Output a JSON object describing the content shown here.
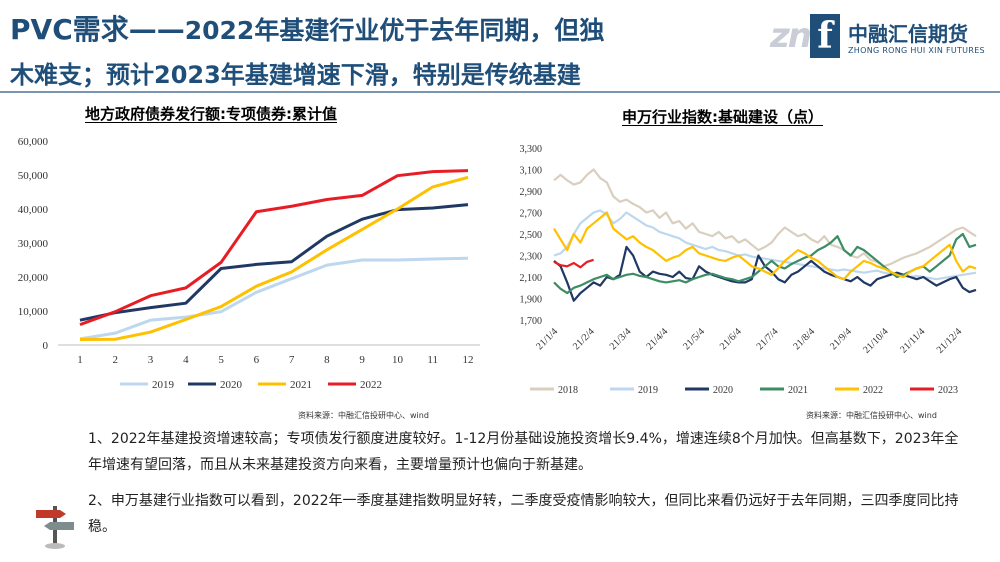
{
  "header": {
    "title_line1_a": "PVC需求——",
    "title_line1_b": "2022年基建行业优于去年同期，但独",
    "title_line2": "木难支；预计2023年基建增速下滑，特别是传统基建",
    "logo_text_cn": "中融汇信期货",
    "logo_text_en": "ZHONG RONG HUI XIN FUTURES",
    "accent_color": "#1f4e79"
  },
  "left_chart": {
    "title": "地方政府债券发行额:专项债券:累计值",
    "source": "资料来源：中融汇信投研中心、wind"
  },
  "right_chart": {
    "title": "申万行业指数:基础建设（点）",
    "source": "资料来源：中融汇信投研中心、wind"
  },
  "notes": {
    "p1": "1、2022年基建投资增速较高；专项债发行额度进度较好。1-12月份基础设施投资增长9.4%，增速连续8个月加快。但高基数下，2023年全年增速有望回落，而且从未来基建投资方向来看，主要增量预计也偏向于新基建。",
    "p2": "2、申万基建行业指数可以看到，2022年一季度基建指数明显好转，二季度受疫情影响较大，但同比来看仍远好于去年同期，三四季度同比持稳。"
  },
  "chart_data": [
    {
      "type": "line",
      "title": "地方政府债券发行额:专项债券:累计值",
      "x": [
        1,
        2,
        3,
        4,
        5,
        6,
        7,
        8,
        9,
        10,
        11,
        12
      ],
      "ylim": [
        0,
        60000
      ],
      "yticks": [
        0,
        10000,
        20000,
        30000,
        40000,
        50000,
        60000
      ],
      "ytick_labels": [
        "0",
        "10,000",
        "20,000",
        "30,000",
        "40,000",
        "50,000",
        "60,000"
      ],
      "legend_position": "bottom",
      "series": [
        {
          "name": "2019",
          "color": "#bdd7ee",
          "values": [
            1800,
            3500,
            7300,
            8200,
            9800,
            15500,
            19500,
            23500,
            25000,
            25000,
            25300,
            25500
          ]
        },
        {
          "name": "2020",
          "color": "#203864",
          "values": [
            7300,
            9500,
            11000,
            12300,
            22500,
            23700,
            24500,
            32000,
            37000,
            39800,
            40300,
            41300
          ]
        },
        {
          "name": "2021",
          "color": "#ffc000",
          "values": [
            1600,
            1700,
            3800,
            7500,
            11300,
            17300,
            21500,
            28000,
            34000,
            40000,
            46500,
            49300
          ]
        },
        {
          "name": "2022",
          "color": "#e81c24",
          "values": [
            6000,
            9800,
            14500,
            16800,
            24300,
            39200,
            40800,
            42800,
            44000,
            49800,
            51000,
            51300
          ]
        }
      ]
    },
    {
      "type": "line",
      "title": "申万行业指数:基础建设（点）",
      "x_labels": [
        "21/1/4",
        "21/2/4",
        "21/3/4",
        "21/4/4",
        "21/5/4",
        "21/6/4",
        "21/7/4",
        "21/8/4",
        "21/9/4",
        "21/10/4",
        "21/11/4",
        "21/12/4"
      ],
      "ylim": [
        1700,
        3300
      ],
      "yticks": [
        1700,
        1900,
        2100,
        2300,
        2500,
        2700,
        2900,
        3100,
        3300
      ],
      "ytick_labels": [
        "1,700",
        "1,900",
        "2,100",
        "2,300",
        "2,500",
        "2,700",
        "2,900",
        "3,100",
        "3,300"
      ],
      "legend_position": "bottom",
      "series": [
        {
          "name": "2018",
          "color": "#d9cfbf",
          "values": [
            3000,
            3050,
            3000,
            2960,
            2980,
            3050,
            3100,
            3020,
            2980,
            2850,
            2800,
            2820,
            2780,
            2750,
            2700,
            2720,
            2650,
            2700,
            2600,
            2620,
            2550,
            2600,
            2520,
            2500,
            2480,
            2520,
            2460,
            2480,
            2420,
            2450,
            2400,
            2350,
            2380,
            2420,
            2500,
            2560,
            2520,
            2480,
            2500,
            2450,
            2420,
            2480,
            2400,
            2380,
            2350,
            2300,
            2280,
            2320,
            2260,
            2240,
            2200,
            2220,
            2250,
            2280,
            2300,
            2320,
            2350,
            2380,
            2420,
            2460,
            2500,
            2540,
            2560,
            2520,
            2480
          ]
        },
        {
          "name": "2019",
          "color": "#bdd7ee",
          "values": [
            2300,
            2320,
            2380,
            2500,
            2600,
            2650,
            2700,
            2720,
            2680,
            2600,
            2640,
            2700,
            2660,
            2620,
            2580,
            2560,
            2520,
            2500,
            2480,
            2460,
            2420,
            2400,
            2380,
            2360,
            2380,
            2350,
            2340,
            2320,
            2300,
            2310,
            2290,
            2280,
            2270,
            2260,
            2250,
            2240,
            2230,
            2220,
            2210,
            2200,
            2190,
            2180,
            2170,
            2160,
            2170,
            2160,
            2150,
            2140,
            2150,
            2160,
            2140,
            2130,
            2120,
            2110,
            2100,
            2110,
            2100,
            2090,
            2080,
            2090,
            2100,
            2110,
            2120,
            2130,
            2140
          ]
        },
        {
          "name": "2020",
          "color": "#203864",
          "values": [
            2250,
            2200,
            2050,
            1880,
            1950,
            2000,
            2050,
            2020,
            2100,
            2080,
            2120,
            2380,
            2300,
            2150,
            2100,
            2150,
            2130,
            2120,
            2100,
            2150,
            2090,
            2080,
            2200,
            2150,
            2120,
            2100,
            2080,
            2060,
            2050,
            2050,
            2080,
            2300,
            2200,
            2150,
            2080,
            2050,
            2120,
            2150,
            2200,
            2250,
            2200,
            2150,
            2120,
            2100,
            2080,
            2060,
            2100,
            2050,
            2020,
            2080,
            2100,
            2120,
            2140,
            2120,
            2100,
            2080,
            2100,
            2060,
            2020,
            2050,
            2080,
            2100,
            2000,
            1960,
            1980
          ]
        },
        {
          "name": "2021",
          "color": "#3c8c64",
          "values": [
            2050,
            1990,
            1950,
            2000,
            2020,
            2050,
            2080,
            2100,
            2120,
            2080,
            2100,
            2120,
            2130,
            2110,
            2100,
            2080,
            2060,
            2050,
            2060,
            2070,
            2050,
            2080,
            2100,
            2120,
            2130,
            2110,
            2090,
            2080,
            2060,
            2080,
            2100,
            2150,
            2200,
            2250,
            2200,
            2180,
            2220,
            2250,
            2280,
            2300,
            2350,
            2380,
            2420,
            2480,
            2350,
            2300,
            2380,
            2350,
            2300,
            2250,
            2200,
            2150,
            2100,
            2120,
            2150,
            2180,
            2200,
            2150,
            2200,
            2250,
            2300,
            2450,
            2500,
            2380,
            2400
          ]
        },
        {
          "name": "2022",
          "color": "#ffc000",
          "values": [
            2550,
            2450,
            2350,
            2500,
            2420,
            2550,
            2600,
            2650,
            2700,
            2550,
            2500,
            2450,
            2480,
            2420,
            2380,
            2350,
            2300,
            2250,
            2280,
            2300,
            2350,
            2380,
            2320,
            2300,
            2280,
            2260,
            2250,
            2280,
            2300,
            2250,
            2200,
            2180,
            2150,
            2120,
            2180,
            2250,
            2300,
            2350,
            2320,
            2280,
            2250,
            2200,
            2150,
            2100,
            2080,
            2150,
            2200,
            2250,
            2230,
            2200,
            2180,
            2150,
            2120,
            2100,
            2150,
            2180,
            2200,
            2250,
            2300,
            2350,
            2400,
            2250,
            2150,
            2200,
            2180
          ]
        },
        {
          "name": "2023",
          "color": "#e81c24",
          "values": [
            2240,
            2210,
            2200,
            2230,
            2190,
            2240,
            2260
          ]
        }
      ]
    }
  ]
}
